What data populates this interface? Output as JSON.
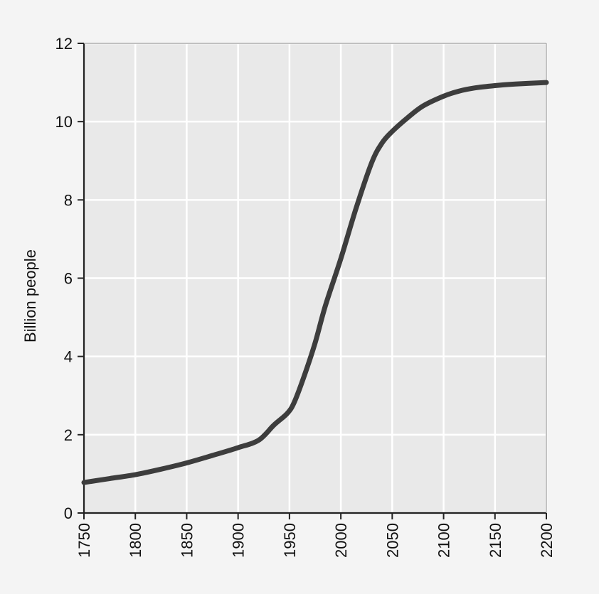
{
  "chart_data": {
    "type": "line",
    "title": "",
    "xlabel": "",
    "ylabel": "Billion people",
    "xlim": [
      1750,
      2200
    ],
    "ylim": [
      0,
      12
    ],
    "x_ticks": [
      1750,
      1800,
      1850,
      1900,
      1950,
      2000,
      2050,
      2100,
      2150,
      2200
    ],
    "y_ticks": [
      0,
      2,
      4,
      6,
      8,
      10,
      12
    ],
    "grid": true,
    "legend": "none",
    "colors": {
      "plot_background": "#e9e9e9",
      "grid": "#ffffff",
      "line": "#3d3d3d",
      "axis": "#222222"
    },
    "series": [
      {
        "x": [
          1750,
          1775,
          1800,
          1825,
          1850,
          1875,
          1900,
          1920,
          1935,
          1948,
          1955,
          1965,
          1975,
          1985,
          2000,
          2015,
          2030,
          2040,
          2050,
          2065,
          2080,
          2100,
          2115,
          2130,
          2150,
          2170,
          2200
        ],
        "y": [
          0.78,
          0.88,
          0.98,
          1.12,
          1.28,
          1.47,
          1.67,
          1.86,
          2.25,
          2.55,
          2.85,
          3.55,
          4.35,
          5.3,
          6.5,
          7.8,
          8.95,
          9.45,
          9.75,
          10.1,
          10.4,
          10.65,
          10.78,
          10.86,
          10.92,
          10.96,
          11.0
        ]
      }
    ]
  }
}
